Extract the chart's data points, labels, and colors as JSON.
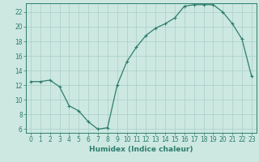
{
  "x": [
    0,
    1,
    2,
    3,
    4,
    5,
    6,
    7,
    8,
    9,
    10,
    11,
    12,
    13,
    14,
    15,
    16,
    17,
    18,
    19,
    20,
    21,
    22,
    23
  ],
  "y": [
    12.5,
    12.5,
    12.7,
    11.8,
    9.2,
    8.5,
    7.0,
    6.0,
    6.2,
    12.0,
    15.2,
    17.2,
    18.8,
    19.8,
    20.4,
    21.2,
    22.8,
    23.0,
    23.0,
    23.0,
    22.0,
    20.4,
    18.3,
    13.2
  ],
  "line_color": "#2e7d6e",
  "marker": "+",
  "marker_size": 3,
  "marker_linewidth": 0.8,
  "bg_color": "#cce8e0",
  "grid_color": "#aacfc8",
  "xlabel": "Humidex (Indice chaleur)",
  "xlim": [
    -0.5,
    23.5
  ],
  "ylim": [
    5.5,
    23.2
  ],
  "yticks": [
    6,
    8,
    10,
    12,
    14,
    16,
    18,
    20,
    22
  ],
  "xticks": [
    0,
    1,
    2,
    3,
    4,
    5,
    6,
    7,
    8,
    9,
    10,
    11,
    12,
    13,
    14,
    15,
    16,
    17,
    18,
    19,
    20,
    21,
    22,
    23
  ],
  "tick_color": "#2e7d6e",
  "spine_color": "#2e7d6e",
  "xlabel_fontsize": 6.5,
  "tick_fontsize": 5.5,
  "line_width": 0.9
}
